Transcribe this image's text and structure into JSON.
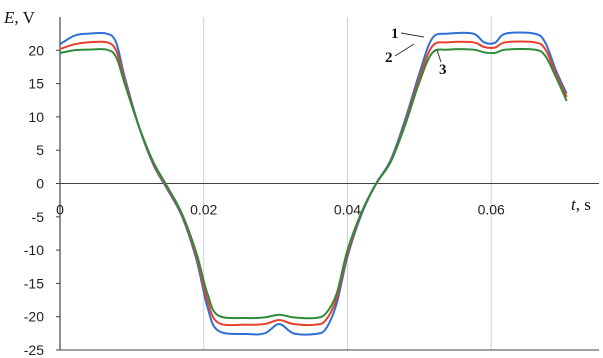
{
  "chart_data": {
    "type": "line",
    "xlabel_var": "t",
    "xlabel_unit": ", s",
    "ylabel_var": "E",
    "ylabel_unit": ", V",
    "xlim": [
      0,
      0.075
    ],
    "ylim": [
      -25,
      25
    ],
    "x_ticks": [
      {
        "value": 0,
        "label": "0"
      },
      {
        "value": 0.02,
        "label": "0.02"
      },
      {
        "value": 0.04,
        "label": "0.04"
      },
      {
        "value": 0.06,
        "label": "0.06"
      }
    ],
    "y_ticks": [
      {
        "value": 20,
        "label": "20"
      },
      {
        "value": 15,
        "label": "15"
      },
      {
        "value": 10,
        "label": "10"
      },
      {
        "value": 5,
        "label": "5"
      },
      {
        "value": 0,
        "label": "0"
      },
      {
        "value": -5,
        "label": "-5"
      },
      {
        "value": -10,
        "label": "-10"
      },
      {
        "value": -15,
        "label": "-15"
      },
      {
        "value": -20,
        "label": "-20"
      },
      {
        "value": -25,
        "label": "-25"
      }
    ],
    "grid": {
      "vertical": true,
      "horizontal": false
    },
    "series": [
      {
        "name": "1",
        "color": "#2f6fd6",
        "x": [
          0,
          0.002,
          0.004,
          0.0065,
          0.0078,
          0.009,
          0.011,
          0.013,
          0.015,
          0.017,
          0.019,
          0.0205,
          0.022,
          0.026,
          0.0285,
          0.0305,
          0.0325,
          0.0355,
          0.037,
          0.0385,
          0.04,
          0.042,
          0.044,
          0.046,
          0.048,
          0.05,
          0.0518,
          0.054,
          0.0575,
          0.059,
          0.0605,
          0.062,
          0.066,
          0.0675,
          0.069,
          0.0705
        ],
        "y": [
          20.9,
          22.2,
          22.5,
          22.5,
          21.2,
          16.0,
          8.5,
          2.8,
          -1.0,
          -5.0,
          -11.5,
          -18.5,
          -22.1,
          -22.6,
          -22.5,
          -21.1,
          -22.5,
          -22.6,
          -21.8,
          -18.0,
          -11.0,
          -4.5,
          0.0,
          3.5,
          9.5,
          16.5,
          21.8,
          22.5,
          22.5,
          21.2,
          21.1,
          22.5,
          22.5,
          21.2,
          17.0,
          13.5
        ]
      },
      {
        "name": "2",
        "color": "#e8402a",
        "x": [
          0,
          0.002,
          0.004,
          0.0065,
          0.0078,
          0.009,
          0.011,
          0.013,
          0.015,
          0.017,
          0.019,
          0.0205,
          0.022,
          0.026,
          0.0285,
          0.0305,
          0.0325,
          0.0355,
          0.037,
          0.0385,
          0.04,
          0.042,
          0.044,
          0.046,
          0.048,
          0.05,
          0.0518,
          0.054,
          0.0575,
          0.059,
          0.0605,
          0.062,
          0.066,
          0.0675,
          0.069,
          0.0705
        ],
        "y": [
          20.2,
          20.9,
          21.2,
          21.2,
          20.0,
          15.5,
          8.5,
          3.0,
          -0.8,
          -4.8,
          -11.0,
          -17.5,
          -20.9,
          -21.2,
          -21.1,
          -20.5,
          -21.1,
          -21.2,
          -20.5,
          -17.2,
          -10.5,
          -4.3,
          0.0,
          3.3,
          9.0,
          15.8,
          20.6,
          21.2,
          21.2,
          20.5,
          20.4,
          21.2,
          21.2,
          20.2,
          16.5,
          13.0
        ]
      },
      {
        "name": "3",
        "color": "#2e8b3a",
        "x": [
          0,
          0.002,
          0.004,
          0.0065,
          0.0078,
          0.009,
          0.011,
          0.013,
          0.015,
          0.017,
          0.019,
          0.0205,
          0.022,
          0.026,
          0.0285,
          0.0305,
          0.0325,
          0.0355,
          0.037,
          0.0385,
          0.04,
          0.042,
          0.044,
          0.046,
          0.048,
          0.05,
          0.0518,
          0.054,
          0.0575,
          0.059,
          0.0605,
          0.062,
          0.066,
          0.0675,
          0.069,
          0.0705
        ],
        "y": [
          19.6,
          20.0,
          20.1,
          20.1,
          19.0,
          15.0,
          8.5,
          3.2,
          -0.6,
          -4.6,
          -10.5,
          -16.5,
          -19.8,
          -20.2,
          -20.1,
          -19.7,
          -20.1,
          -20.2,
          -19.5,
          -16.5,
          -10.0,
          -4.2,
          0.0,
          3.2,
          8.7,
          15.2,
          19.6,
          20.1,
          20.1,
          19.7,
          19.6,
          20.1,
          20.1,
          19.2,
          16.0,
          12.4
        ]
      }
    ]
  }
}
